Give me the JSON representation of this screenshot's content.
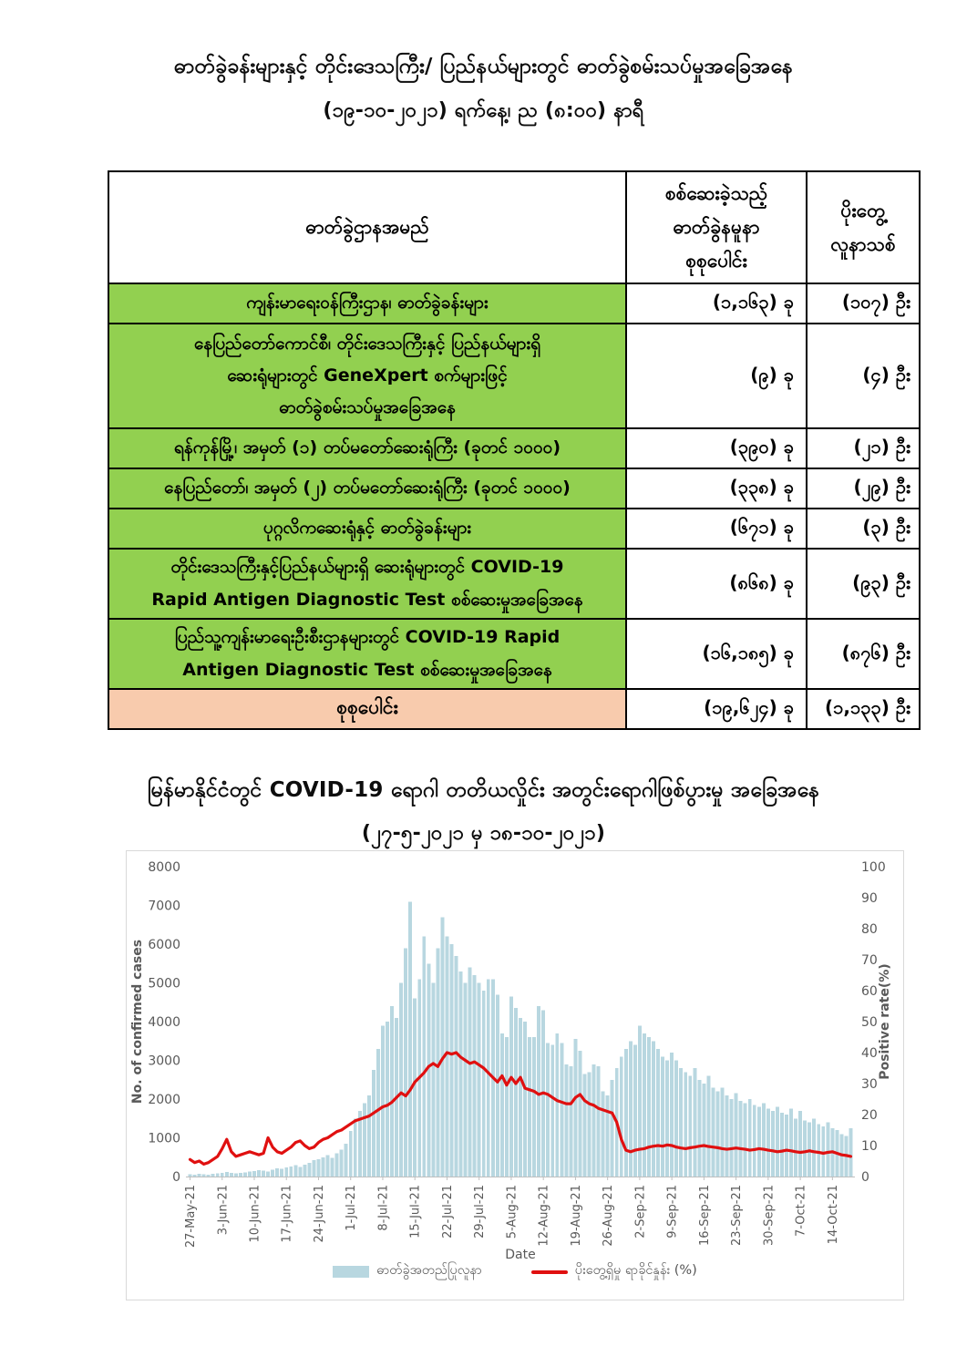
{
  "document": {
    "title_line1": "ဓာတ်ခွဲခန်းများနှင့် တိုင်းဒေသကြီး/ ပြည်နယ်များတွင် ဓာတ်ခွဲစမ်းသပ်မှုအခြေအနေ",
    "title_line2": "(၁၉-၁၀-၂၀၂၁) ရက်နေ့၊ ည (၈:၀၀) နာရီ"
  },
  "table": {
    "header": {
      "lab_name": "ဓာတ်ခွဲဌာနအမည်",
      "samples": "စစ်ဆေးခဲ့သည့်\nဓာတ်ခွဲနမူနာ\nစုစုပေါင်း",
      "positives": "ပိုးတွေ့\nလူနာသစ်"
    },
    "rows": [
      {
        "name": "ကျန်းမာရေးဝန်ကြီးဌာန၊ ဓာတ်ခွဲခန်းများ",
        "samples": "(၁,၁၆၃) ခု",
        "positives": "(၁၀၇) ဦး",
        "samples_value": 1163,
        "positives_value": 107
      },
      {
        "name": "နေပြည်တော်ကောင်စီ၊ တိုင်းဒေသကြီးနှင့် ပြည်နယ်များရှိ\nဆေးရုံများတွင် GeneXpert စက်များဖြင့်\nဓာတ်ခွဲစမ်းသပ်မှုအခြေအနေ",
        "samples": "(၉) ခု",
        "positives": "(၄) ဦး",
        "samples_value": 9,
        "positives_value": 4
      },
      {
        "name": "ရန်ကုန်မြို့၊ အမှတ် (၁) တပ်မတော်ဆေးရုံကြီး (ခုတင် ၁၀၀၀)",
        "samples": "(၃၉၀) ခု",
        "positives": "(၂၁) ဦး",
        "samples_value": 390,
        "positives_value": 21
      },
      {
        "name": "နေပြည်တော်၊ အမှတ် (၂) တပ်မတော်ဆေးရုံကြီး (ခုတင် ၁၀၀၀)",
        "samples": "(၃၃၈) ခု",
        "positives": "(၂၉) ဦး",
        "samples_value": 338,
        "positives_value": 29
      },
      {
        "name": "ပုဂ္ဂလိကဆေးရုံနှင့် ဓာတ်ခွဲခန်းများ",
        "samples": "(၆၇၁) ခု",
        "positives": "(၃) ဦး",
        "samples_value": 671,
        "positives_value": 3
      },
      {
        "name": "တိုင်းဒေသကြီးနှင့်ပြည်နယ်များရှိ ဆေးရုံများတွင် COVID-19\nRapid Antigen Diagnostic Test စစ်ဆေးမှုအခြေအနေ",
        "samples": "(၈၆၈) ခု",
        "positives": "(၉၃) ဦး",
        "samples_value": 868,
        "positives_value": 93
      },
      {
        "name": "ပြည်သူ့ကျန်းမာရေးဦးစီးဌာနများတွင်  COVID-19 Rapid\nAntigen Diagnostic Test စစ်ဆေးမှုအခြေအနေ",
        "samples": "(၁၆,၁၈၅) ခု",
        "positives": "(၈၇၆) ဦး",
        "samples_value": 16185,
        "positives_value": 876
      }
    ],
    "total": {
      "label": "စုစုပေါင်း",
      "samples": "(၁၉,၆၂၄) ခု",
      "positives": "(၁,၁၃၃) ဦး",
      "samples_value": 19624,
      "positives_value": 1133
    },
    "colors": {
      "data_row_bg": "#92d050",
      "total_row_bg": "#f8cbad",
      "border": "#000000"
    }
  },
  "chart": {
    "title": "မြန်မာနိုင်ငံတွင် COVID-19 ရောဂါ တတိယလှိုင်း အတွင်းရောဂါဖြစ်ပွားမှု အခြေအနေ",
    "subtitle": "(၂၇-၅-၂၀၂၁ မှ ၁၈-၁၀-၂၀၂၁)",
    "legend": {
      "bar_label": "ဓာတ်ခွဲအတည်ပြုလူနာ",
      "line_label": "ပိုးတွေ့ရှိမှု ရာခိုင်နှုန်း (%)"
    }
  },
  "chart_data": {
    "type": "bar",
    "title": "မြန်မာနိုင်ငံတွင် COVID-19 ရောဂါ တတိယလှိုင်း အတွင်းရောဂါဖြစ်ပွားမှု အခြေအနေ",
    "subtitle": "(၂၇-၅-၂၀၂၁ မှ ၁၈-၁၀-၂၀၂၁)",
    "start_date": "27-May-21",
    "end_date": "18-Oct-21",
    "points": 145,
    "xlabel": "Date",
    "grid": false,
    "legend_position": "bottom",
    "axis_text_color": "#595959",
    "axis_line_color": "#bfbfbf",
    "x_tick_interval_days": 7,
    "x_tick_labels": [
      "27-May-21",
      "3-Jun-21",
      "10-Jun-21",
      "17-Jun-21",
      "24-Jun-21",
      "1-Jul-21",
      "8-Jul-21",
      "15-Jul-21",
      "22-Jul-21",
      "29-Jul-21",
      "5-Aug-21",
      "12-Aug-21",
      "19-Aug-21",
      "26-Aug-21",
      "2-Sep-21",
      "9-Sep-21",
      "16-Sep-21",
      "23-Sep-21",
      "30-Sep-21",
      "7-Oct-21",
      "14-Oct-21"
    ],
    "left_axis": {
      "label": "No. of confirmed cases",
      "min": 0,
      "max": 8000,
      "step": 1000
    },
    "right_axis": {
      "label": "Positive rate(%)",
      "min": 0,
      "max": 100,
      "step": 10
    },
    "series": [
      {
        "name": "ဓာတ်ခွဲအတည်ပြုလူနာ",
        "type": "bar",
        "axis": "left",
        "color": "#b8d7e0",
        "values": [
          60,
          50,
          70,
          55,
          45,
          70,
          85,
          100,
          120,
          95,
          80,
          90,
          110,
          130,
          140,
          160,
          150,
          135,
          180,
          210,
          200,
          230,
          260,
          290,
          250,
          310,
          350,
          420,
          450,
          500,
          550,
          480,
          600,
          700,
          850,
          1180,
          1500,
          1700,
          1900,
          2100,
          2750,
          3300,
          3900,
          4000,
          4400,
          4100,
          5000,
          5900,
          7100,
          4600,
          5100,
          6200,
          5500,
          5000,
          5900,
          6700,
          6200,
          6000,
          5700,
          5300,
          5000,
          5400,
          5200,
          5000,
          4800,
          5100,
          5100,
          4700,
          3700,
          3600,
          4650,
          4350,
          4100,
          4000,
          3600,
          3600,
          4400,
          4300,
          3450,
          3400,
          3700,
          3450,
          2900,
          2850,
          3550,
          3250,
          2650,
          2700,
          2900,
          2850,
          2200,
          2100,
          2500,
          2800,
          3100,
          3300,
          3500,
          3400,
          3900,
          3700,
          3600,
          3500,
          3300,
          3100,
          3000,
          3200,
          3000,
          2800,
          2700,
          2600,
          2800,
          2500,
          2400,
          2600,
          2300,
          2200,
          2300,
          2100,
          2000,
          2150,
          1950,
          1900,
          2000,
          1850,
          1800,
          1900,
          1750,
          1700,
          1800,
          1650,
          1600,
          1750,
          1500,
          1700,
          1450,
          1400,
          1500,
          1350,
          1300,
          1400,
          1250,
          1200,
          1100,
          1050,
          1250
        ]
      },
      {
        "name": "ပိုးတွေ့ရှိမှု ရာခိုင်နှုန်း (%)",
        "type": "line",
        "axis": "right",
        "color": "#e01010",
        "values": [
          5.5,
          4.5,
          5.0,
          4.0,
          4.5,
          5.5,
          6.5,
          9.0,
          12.0,
          8.0,
          6.5,
          7.0,
          7.5,
          8.0,
          7.5,
          7.0,
          7.5,
          12.5,
          9.5,
          8.0,
          7.5,
          8.5,
          9.5,
          11.0,
          11.5,
          10.0,
          9.0,
          9.5,
          11.0,
          12.0,
          12.5,
          13.5,
          14.5,
          15.0,
          16.0,
          17.0,
          18.0,
          18.5,
          19.0,
          19.5,
          20.5,
          21.5,
          22.5,
          23.0,
          24.0,
          25.5,
          27.0,
          26.0,
          28.0,
          30.5,
          32.0,
          33.5,
          35.5,
          36.5,
          35.5,
          38.0,
          40.0,
          39.5,
          40.0,
          38.5,
          37.5,
          36.5,
          37.0,
          36.0,
          35.0,
          33.5,
          32.0,
          30.5,
          32.5,
          29.5,
          32.0,
          30.0,
          32.0,
          28.5,
          28.0,
          27.5,
          26.5,
          27.0,
          26.5,
          25.5,
          24.5,
          24.0,
          23.5,
          23.5,
          25.5,
          26.5,
          24.5,
          23.5,
          23.0,
          22.0,
          21.5,
          21.0,
          20.5,
          17.5,
          12.0,
          8.5,
          8.0,
          8.5,
          8.8,
          9.0,
          9.5,
          9.8,
          10.0,
          9.8,
          10.2,
          10.0,
          9.5,
          9.2,
          9.0,
          9.3,
          9.5,
          9.8,
          10.0,
          9.7,
          9.5,
          9.3,
          9.0,
          8.8,
          9.0,
          9.2,
          9.0,
          8.8,
          8.5,
          8.7,
          9.0,
          8.8,
          8.5,
          8.3,
          8.0,
          8.2,
          8.5,
          8.3,
          8.0,
          7.8,
          8.0,
          8.3,
          8.0,
          7.8,
          7.5,
          7.8,
          8.0,
          7.5,
          7.0,
          6.8,
          6.5
        ]
      }
    ]
  }
}
